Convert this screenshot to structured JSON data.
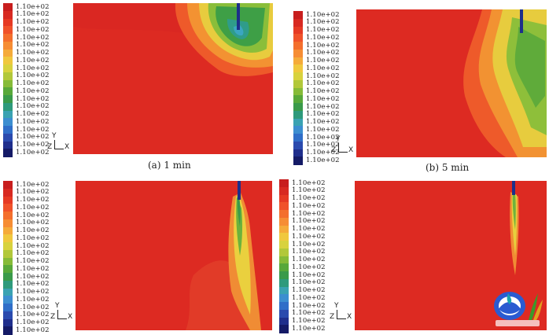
{
  "legend": {
    "labels": [
      "1.10e+02",
      "1.10e+02",
      "1.10e+02",
      "1.10e+02",
      "1.10e+02",
      "1.10e+02",
      "1.10e+02",
      "1.10e+02",
      "1.10e+02",
      "1.10e+02",
      "1.10e+02",
      "1.10e+02",
      "1.10e+02",
      "1.10e+02",
      "1.10e+02",
      "1.10e+02",
      "1.10e+02",
      "1.10e+02",
      "1.10e+02",
      "1.10e+02"
    ],
    "colors": [
      "#c81e1e",
      "#d82a22",
      "#e63a24",
      "#f0522a",
      "#f46f2d",
      "#f68d34",
      "#f5ab3a",
      "#f0c83e",
      "#d8d23e",
      "#b2c83a",
      "#86bb38",
      "#58a83a",
      "#3a9a4a",
      "#2e9a7c",
      "#3aa2b2",
      "#3c8ed0",
      "#2f6ec8",
      "#2a4aae",
      "#1f2e8c",
      "#141a66"
    ]
  },
  "axis_triad": {
    "y": "Y",
    "z": "Z",
    "x": "X"
  },
  "panels": [
    {
      "caption": "(a)  1 min"
    },
    {
      "caption": "(b)  5 min"
    },
    {
      "caption": ""
    },
    {
      "caption": ""
    }
  ],
  "colors": {
    "base_red": "#dd2a22",
    "jet": "#1d2f8a"
  }
}
